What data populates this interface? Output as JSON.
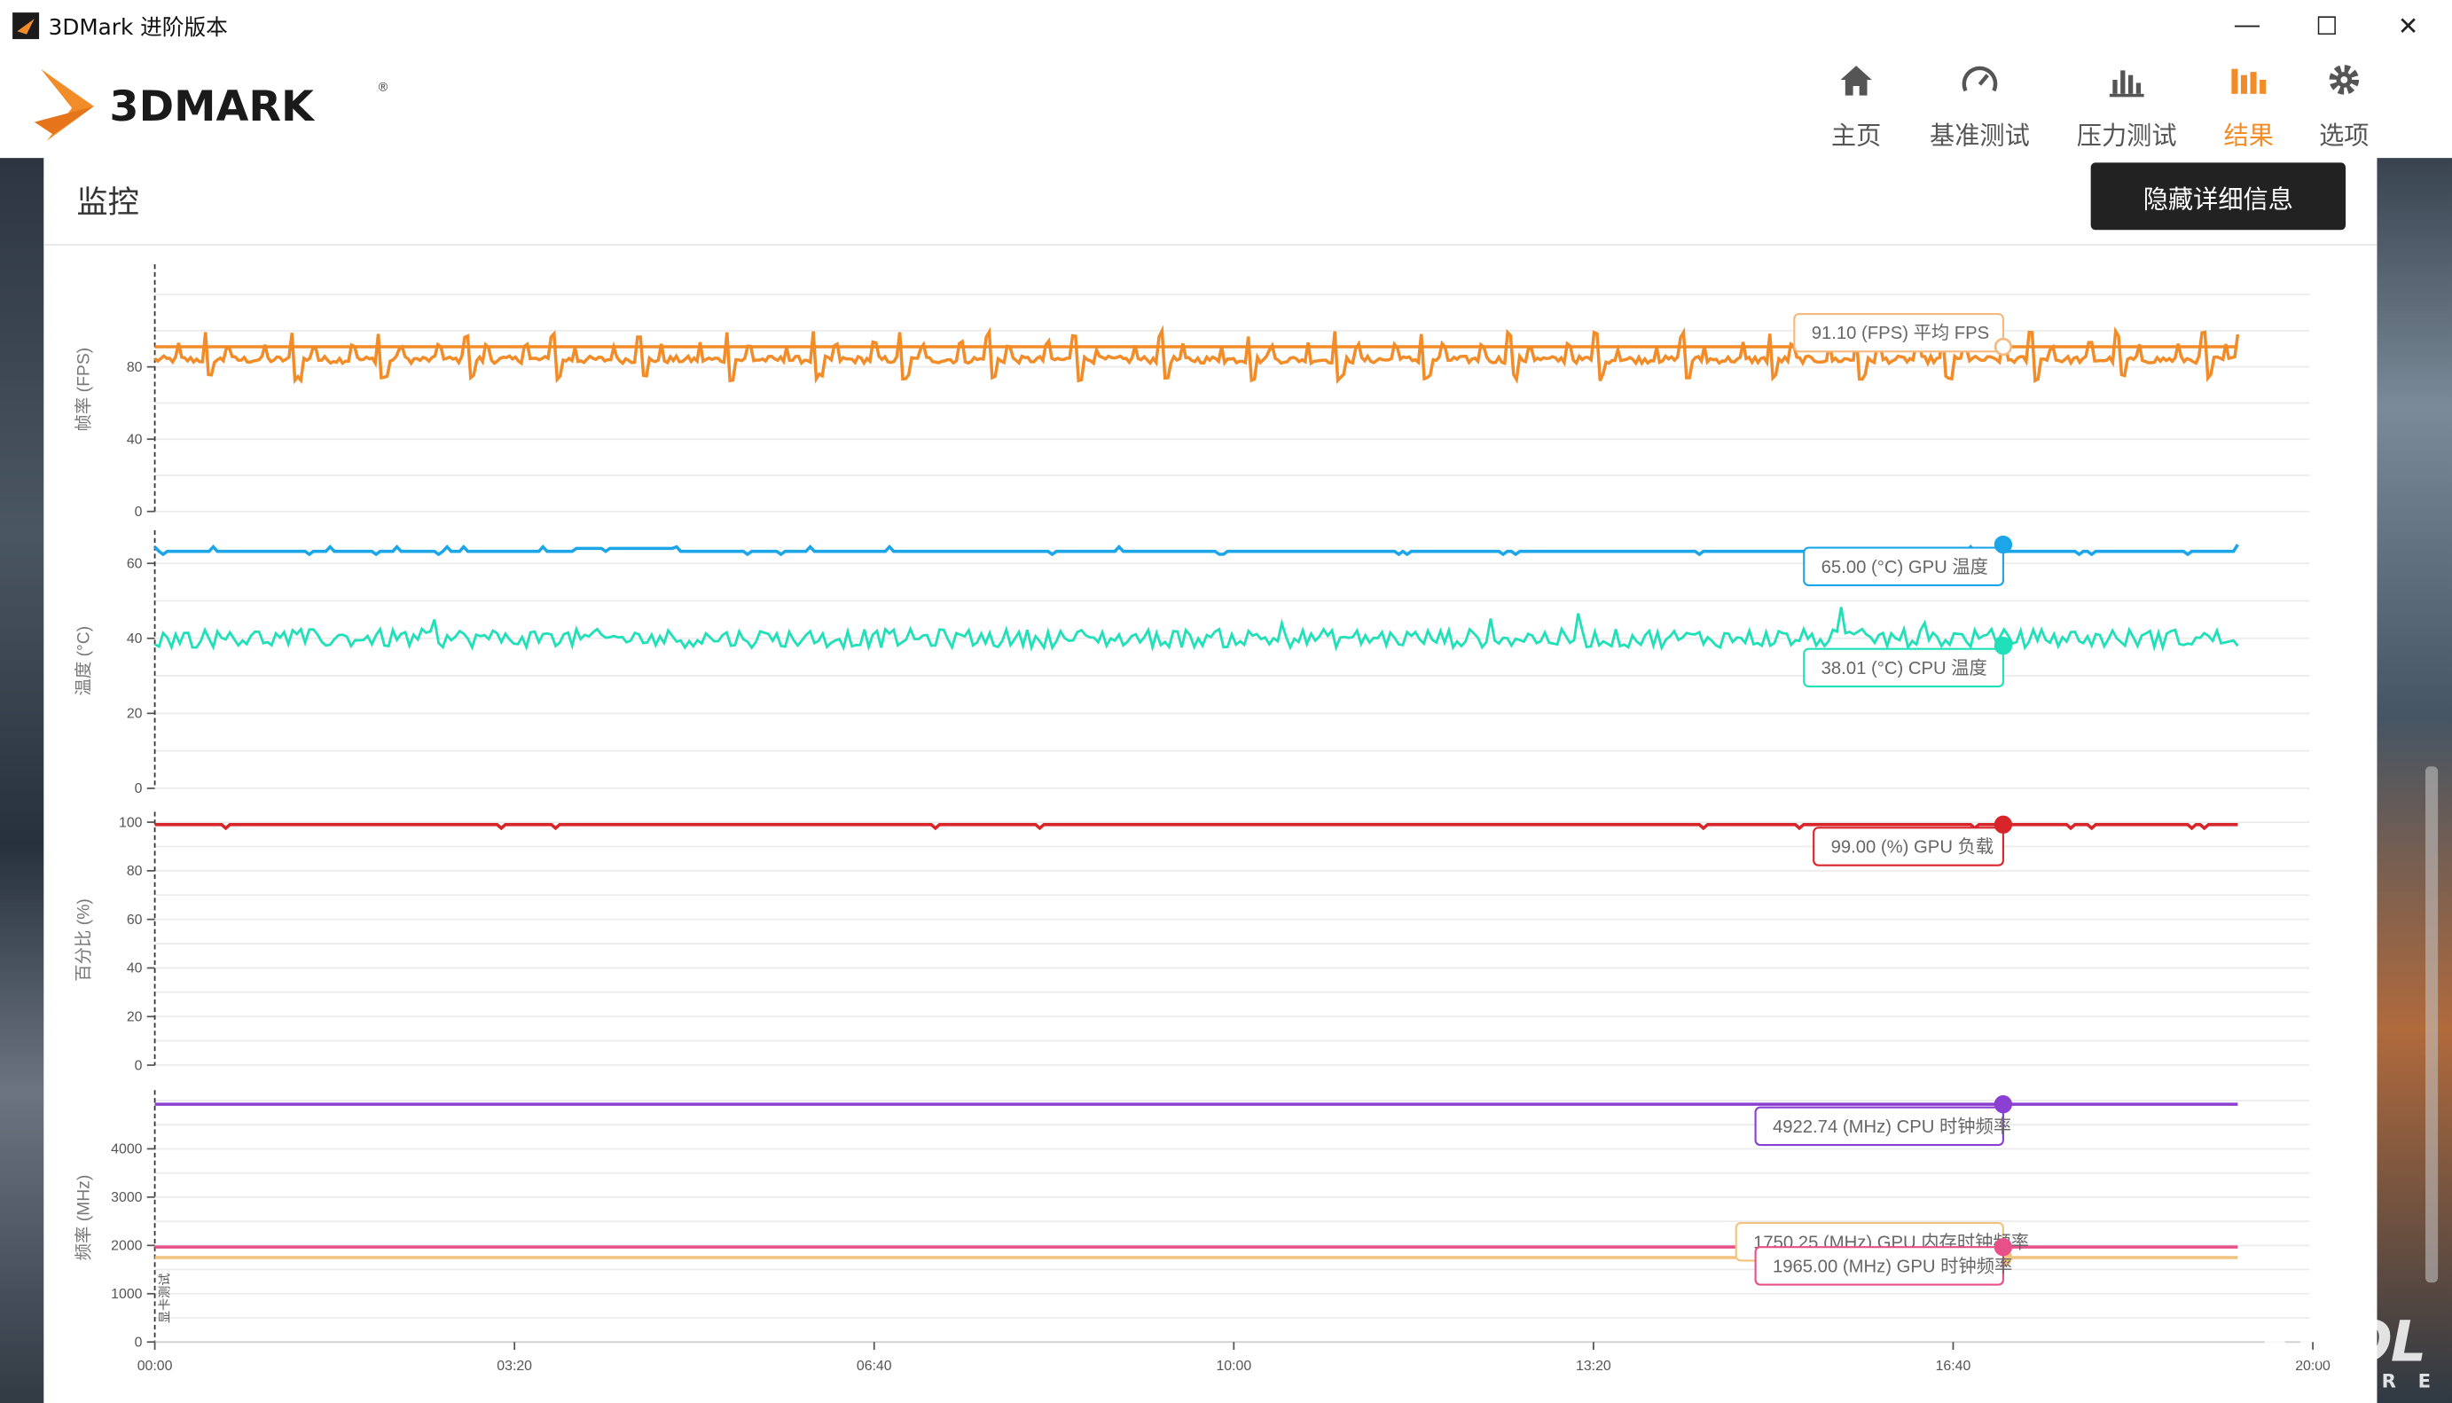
{
  "window": {
    "title": "3DMark 进阶版本",
    "minimize_glyph": "—",
    "maximize_glyph": "☐",
    "close_glyph": "✕"
  },
  "brand": {
    "wordmark": "3DMARK",
    "registered": "®"
  },
  "nav": {
    "items": [
      {
        "label": "主页",
        "icon": "home-icon",
        "active": false
      },
      {
        "label": "基准测试",
        "icon": "gauge-icon",
        "active": false
      },
      {
        "label": "压力测试",
        "icon": "stress-bar-icon",
        "active": false
      },
      {
        "label": "结果",
        "icon": "results-bar-icon",
        "active": true
      },
      {
        "label": "选项",
        "icon": "gear-icon",
        "active": false
      }
    ],
    "accent_color": "#f28c28"
  },
  "panel": {
    "title": "监控",
    "hide_details_label": "隐藏详细信息"
  },
  "watermark": {
    "main": "KOOL",
    "sub": "SHARE"
  },
  "chart_data": {
    "type": "line",
    "x_ticks": [
      "00:00",
      "03:20",
      "06:40",
      "10:00",
      "13:20",
      "16:40",
      "20:00"
    ],
    "x_marker_label": "显卡测试",
    "panels": [
      {
        "ylabel": "帧率 (FPS)",
        "yticks": [
          0,
          40,
          80
        ],
        "ylim": [
          0,
          135
        ],
        "series": [
          {
            "name": "FPS",
            "color": "#f28c28",
            "pattern": "spiky",
            "base": 84,
            "amp": 14,
            "end_value": 91.1
          },
          {
            "name": "平均 FPS",
            "color": "#f28c28",
            "pattern": "flat",
            "value": 91.1
          }
        ],
        "callouts": [
          {
            "text": "91.10 (FPS) 平均 FPS",
            "color": "#f5b87f",
            "value": 91.1
          }
        ]
      },
      {
        "ylabel": "温度 (°C)",
        "yticks": [
          0,
          20,
          40,
          60
        ],
        "ylim": [
          0,
          68
        ],
        "series": [
          {
            "name": "GPU 温度",
            "color": "#1ca6e8",
            "pattern": "steady",
            "base": 63.2,
            "end_value": 65.0
          },
          {
            "name": "CPU 温度",
            "color": "#1fe0b8",
            "pattern": "noisy",
            "base": 40,
            "end_value": 38.01
          }
        ],
        "callouts": [
          {
            "text": "65.00 (°C) GPU 温度",
            "color": "#1ca6e8",
            "value": 65.0
          },
          {
            "text": "38.01 (°C) CPU 温度",
            "color": "#1fe0b8",
            "value": 38.01
          }
        ]
      },
      {
        "ylabel": "百分比 (%)",
        "yticks": [
          0,
          20,
          40,
          60,
          80,
          100
        ],
        "ylim": [
          0,
          103
        ],
        "series": [
          {
            "name": "GPU 负载",
            "color": "#d8252a",
            "pattern": "flat-dips",
            "base": 99,
            "end_value": 99.0
          }
        ],
        "callouts": [
          {
            "text": "99.00 (%) GPU 负载",
            "color": "#d8252a",
            "value": 99.0
          }
        ]
      },
      {
        "ylabel": "频率 (MHz)",
        "yticks": [
          0,
          1000,
          2000,
          3000,
          4000
        ],
        "ylim": [
          0,
          5150
        ],
        "series": [
          {
            "name": "CPU 时钟频率",
            "color": "#8b3fd3",
            "pattern": "flat",
            "value": 4922.74
          },
          {
            "name": "GPU 内存时钟频率",
            "color": "#f2c27f",
            "pattern": "flat",
            "value": 1750.25
          },
          {
            "name": "GPU 时钟频率",
            "color": "#e8508a",
            "pattern": "flat",
            "value": 1965.0
          }
        ],
        "callouts": [
          {
            "text": "4922.74 (MHz) CPU 时钟频率",
            "color": "#8b3fd3",
            "value": 4922.74
          },
          {
            "text": "1750.25 (MHz) GPU 内存时钟频率",
            "color": "#f2c27f",
            "value": 1750.25
          },
          {
            "text": "1965.00 (MHz) GPU 时钟频率",
            "color": "#e8508a",
            "value": 1965.0
          }
        ]
      }
    ]
  }
}
